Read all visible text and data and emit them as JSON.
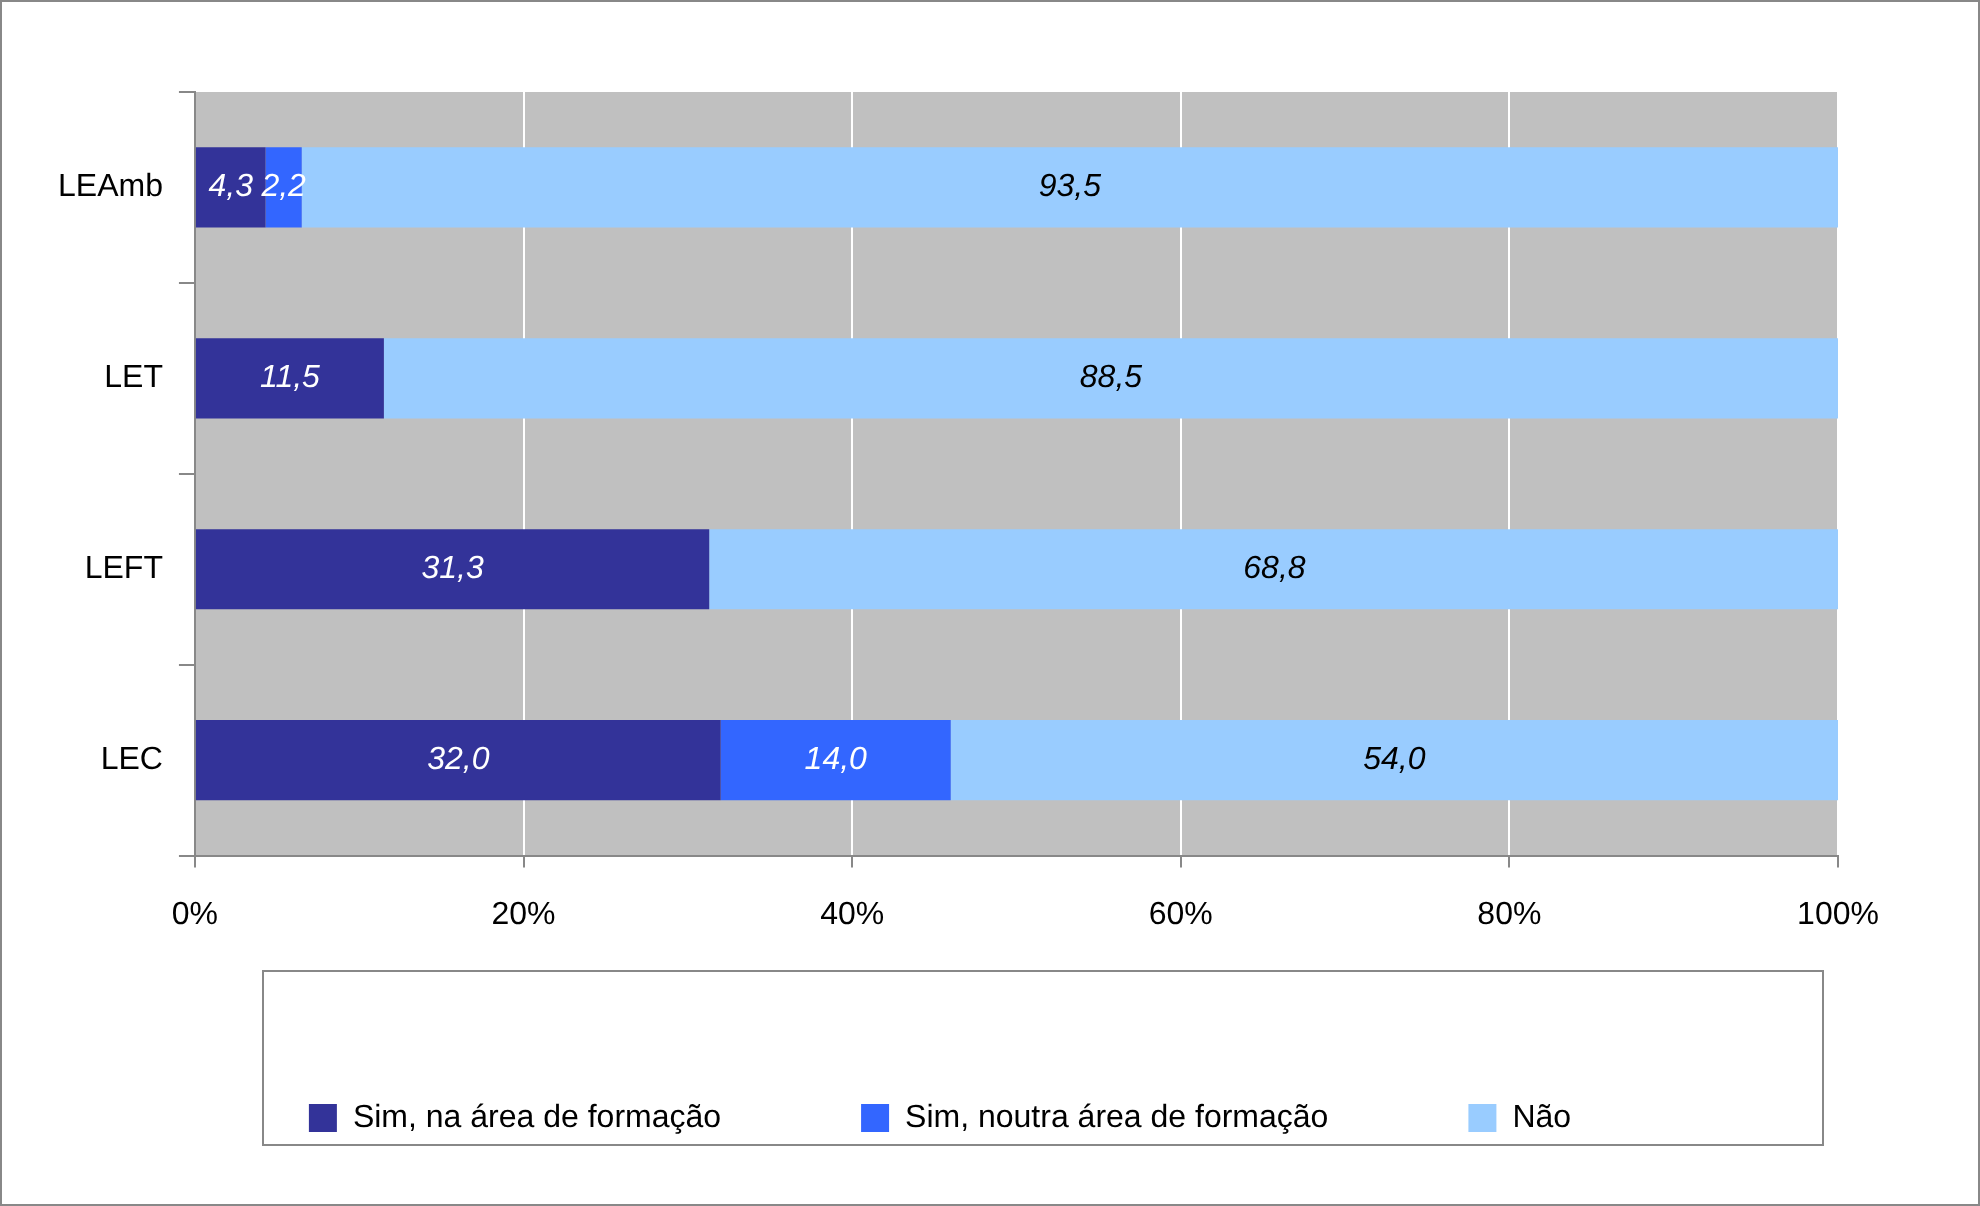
{
  "chart_data": {
    "type": "bar",
    "orientation": "horizontal",
    "stacked": true,
    "categories": [
      "LEAmb",
      "LET",
      "LEFT",
      "LEC"
    ],
    "series": [
      {
        "name": "Sim, na área de formação",
        "color": "#333399",
        "values": [
          4.3,
          11.5,
          31.3,
          32.0
        ],
        "value_labels": [
          "4,3",
          "11,5",
          "31,3",
          "32,0"
        ]
      },
      {
        "name": "Sim, noutra área de formação",
        "color": "#3366ff",
        "values": [
          2.2,
          null,
          null,
          14.0
        ],
        "value_labels": [
          "2,2",
          null,
          null,
          "14,0"
        ]
      },
      {
        "name": "Não",
        "color": "#99ccff",
        "values": [
          93.5,
          88.5,
          68.8,
          54.0
        ],
        "value_labels": [
          "93,5",
          "88,5",
          "68,8",
          "54,0"
        ]
      }
    ],
    "xlim": [
      0,
      100
    ],
    "xticks": [
      {
        "value": 0,
        "label": "0%"
      },
      {
        "value": 20,
        "label": "20%"
      },
      {
        "value": 40,
        "label": "40%"
      },
      {
        "value": 60,
        "label": "60%"
      },
      {
        "value": 80,
        "label": "80%"
      },
      {
        "value": 100,
        "label": "100%"
      }
    ],
    "grid": "x",
    "legend": "bottom"
  }
}
